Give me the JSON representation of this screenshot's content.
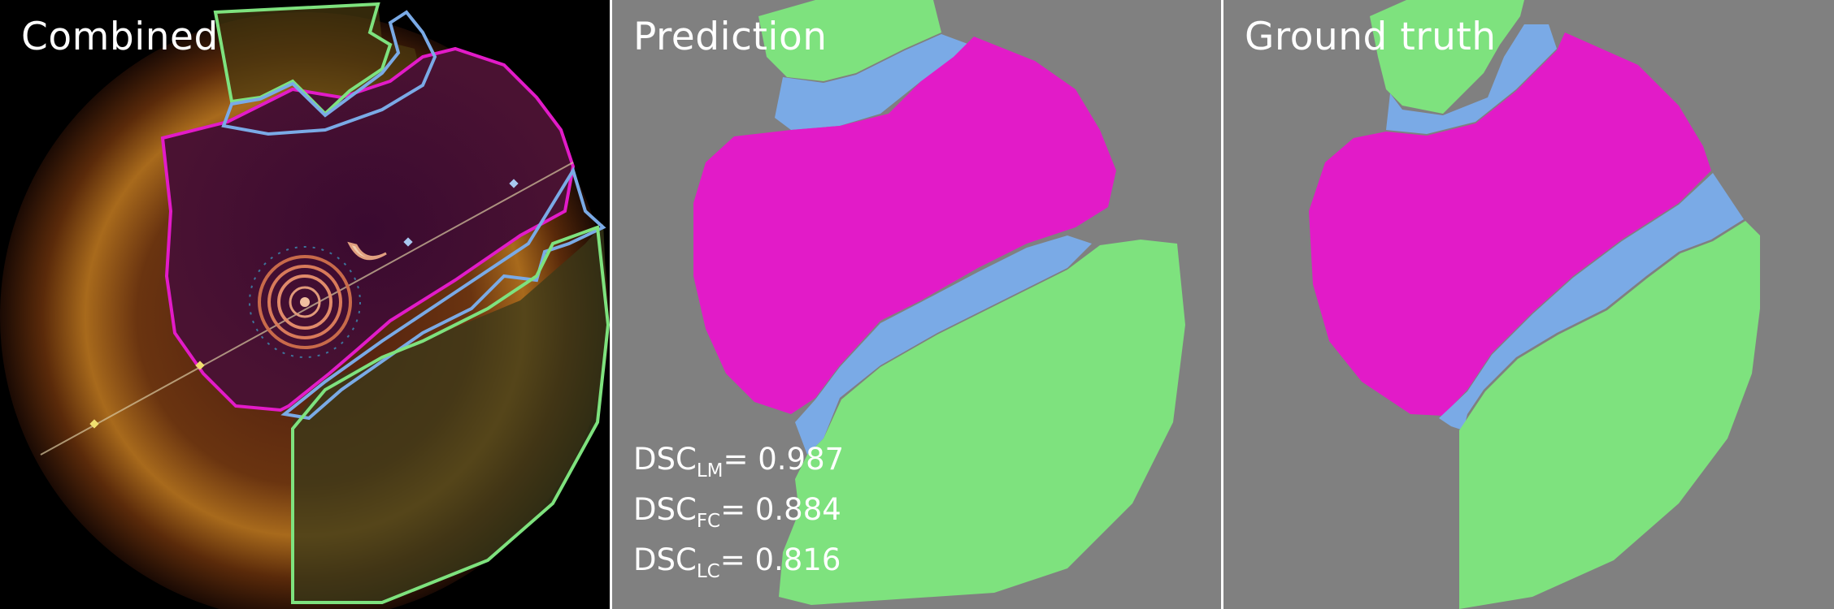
{
  "panels": [
    {
      "title": "Combined"
    },
    {
      "title": "Prediction"
    },
    {
      "title": "Ground truth"
    }
  ],
  "metrics": [
    {
      "label": "DSC",
      "sub": "LM",
      "value": "= 0.987"
    },
    {
      "label": "DSC",
      "sub": "FC",
      "value": "= 0.884"
    },
    {
      "label": "DSC",
      "sub": "LC",
      "value": "= 0.816"
    }
  ],
  "colors": {
    "lumen": "#e21bc8",
    "fibrous_cap": "#7aaae6",
    "lipid_core": "#7ee27e",
    "background": "#808080",
    "oct_background": "#000000"
  }
}
